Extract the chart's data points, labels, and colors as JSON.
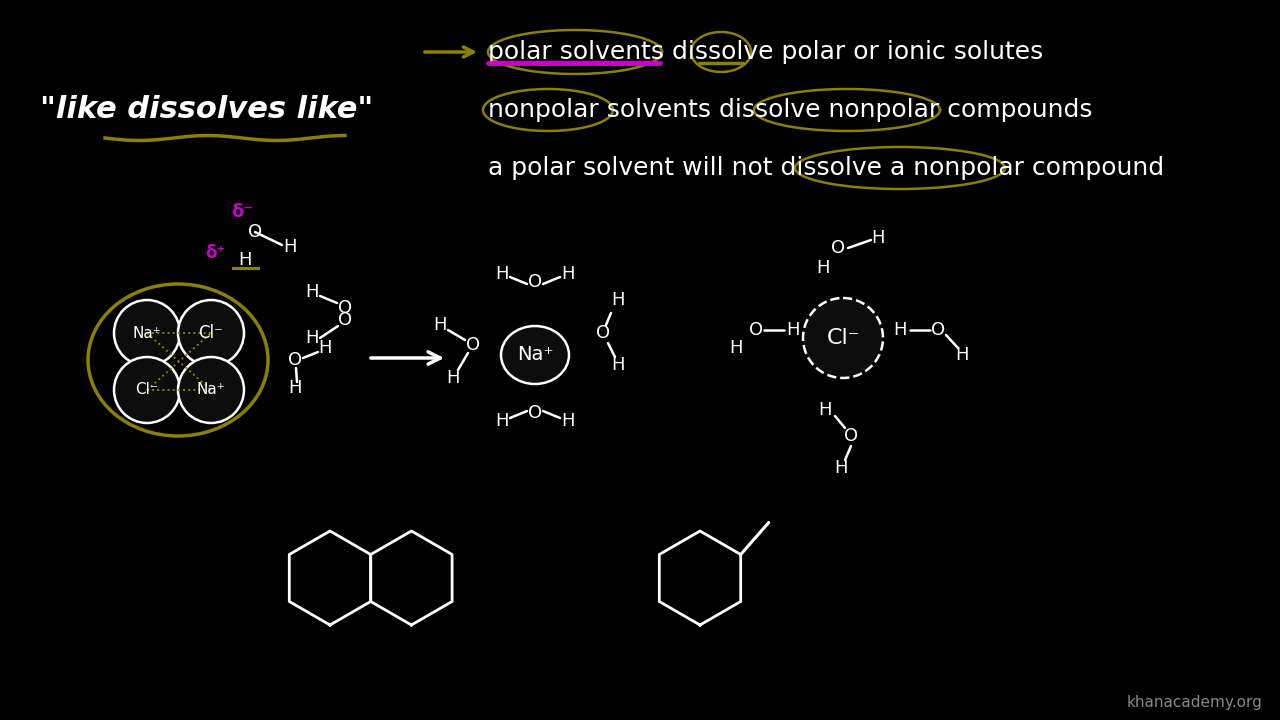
{
  "bg": "#000000",
  "white": "#ffffff",
  "olive": "#8B8000",
  "magenta": "#CC00CC",
  "gray": "#888888",
  "rule1": "polar solvents dissolve polar or ionic solutes",
  "rule2": "nonpolar solvents dissolve nonpolar compounds",
  "rule3": "a polar solvent will not dissolve a nonpolar compound",
  "title": "\"like dissolves like\"",
  "watermark": "khanacademy.org",
  "fig_w": 12.8,
  "fig_h": 7.2
}
